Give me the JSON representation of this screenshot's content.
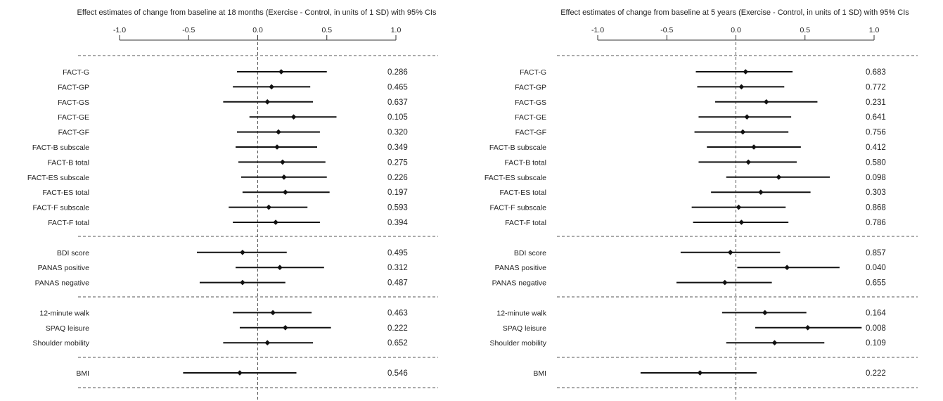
{
  "chart_data": [
    {
      "type": "forest",
      "title": "Effect estimates of change from baseline at 18 months (Exercise - Control, in units of 1 SD) with 95% CIs",
      "xlim": [
        -1.0,
        1.0
      ],
      "ticks": [
        "-1.0",
        "-0.5",
        "0.0",
        "0.5",
        "1.0"
      ],
      "reference_line": 0.0,
      "groups": [
        {
          "rows": [
            {
              "label": "FACT-G",
              "est": 0.17,
              "lo": -0.15,
              "hi": 0.5,
              "p": "0.286"
            },
            {
              "label": "FACT-GP",
              "est": 0.1,
              "lo": -0.18,
              "hi": 0.38,
              "p": "0.465"
            },
            {
              "label": "FACT-GS",
              "est": 0.07,
              "lo": -0.25,
              "hi": 0.4,
              "p": "0.637"
            },
            {
              "label": "FACT-GE",
              "est": 0.26,
              "lo": -0.06,
              "hi": 0.57,
              "p": "0.105"
            },
            {
              "label": "FACT-GF",
              "est": 0.15,
              "lo": -0.15,
              "hi": 0.45,
              "p": "0.320"
            },
            {
              "label": "FACT-B subscale",
              "est": 0.14,
              "lo": -0.16,
              "hi": 0.43,
              "p": "0.349"
            },
            {
              "label": "FACT-B total",
              "est": 0.18,
              "lo": -0.14,
              "hi": 0.49,
              "p": "0.275"
            },
            {
              "label": "FACT-ES subscale",
              "est": 0.19,
              "lo": -0.12,
              "hi": 0.5,
              "p": "0.226"
            },
            {
              "label": "FACT-ES total",
              "est": 0.2,
              "lo": -0.11,
              "hi": 0.52,
              "p": "0.197"
            },
            {
              "label": "FACT-F subscale",
              "est": 0.08,
              "lo": -0.21,
              "hi": 0.36,
              "p": "0.593"
            },
            {
              "label": "FACT-F total",
              "est": 0.13,
              "lo": -0.18,
              "hi": 0.45,
              "p": "0.394"
            }
          ]
        },
        {
          "rows": [
            {
              "label": "BDI score",
              "est": -0.11,
              "lo": -0.44,
              "hi": 0.21,
              "p": "0.495"
            },
            {
              "label": "PANAS positive",
              "est": 0.16,
              "lo": -0.16,
              "hi": 0.48,
              "p": "0.312"
            },
            {
              "label": "PANAS negative",
              "est": -0.11,
              "lo": -0.42,
              "hi": 0.2,
              "p": "0.487"
            }
          ]
        },
        {
          "rows": [
            {
              "label": "12-minute walk",
              "est": 0.11,
              "lo": -0.18,
              "hi": 0.39,
              "p": "0.463"
            },
            {
              "label": "SPAQ leisure",
              "est": 0.2,
              "lo": -0.13,
              "hi": 0.53,
              "p": "0.222"
            },
            {
              "label": "Shoulder mobility",
              "est": 0.07,
              "lo": -0.25,
              "hi": 0.4,
              "p": "0.652"
            }
          ]
        },
        {
          "rows": [
            {
              "label": "BMI",
              "est": -0.13,
              "lo": -0.54,
              "hi": 0.28,
              "p": "0.546"
            }
          ]
        }
      ]
    },
    {
      "type": "forest",
      "title": "Effect estimates of change from baseline at 5 years (Exercise - Control, in units of 1 SD) with 95% CIs",
      "xlim": [
        -1.0,
        1.0
      ],
      "ticks": [
        "-1.0",
        "-0.5",
        "0.0",
        "0.5",
        "1.0"
      ],
      "reference_line": 0.0,
      "groups": [
        {
          "rows": [
            {
              "label": "FACT-G",
              "est": 0.07,
              "lo": -0.29,
              "hi": 0.41,
              "p": "0.683"
            },
            {
              "label": "FACT-GP",
              "est": 0.04,
              "lo": -0.28,
              "hi": 0.35,
              "p": "0.772"
            },
            {
              "label": "FACT-GS",
              "est": 0.22,
              "lo": -0.15,
              "hi": 0.59,
              "p": "0.231"
            },
            {
              "label": "FACT-GE",
              "est": 0.08,
              "lo": -0.27,
              "hi": 0.4,
              "p": "0.641"
            },
            {
              "label": "FACT-GF",
              "est": 0.05,
              "lo": -0.3,
              "hi": 0.38,
              "p": "0.756"
            },
            {
              "label": "FACT-B subscale",
              "est": 0.13,
              "lo": -0.21,
              "hi": 0.47,
              "p": "0.412"
            },
            {
              "label": "FACT-B total",
              "est": 0.09,
              "lo": -0.27,
              "hi": 0.44,
              "p": "0.580"
            },
            {
              "label": "FACT-ES subscale",
              "est": 0.31,
              "lo": -0.07,
              "hi": 0.68,
              "p": "0.098"
            },
            {
              "label": "FACT-ES total",
              "est": 0.18,
              "lo": -0.18,
              "hi": 0.54,
              "p": "0.303"
            },
            {
              "label": "FACT-F subscale",
              "est": 0.02,
              "lo": -0.32,
              "hi": 0.36,
              "p": "0.868"
            },
            {
              "label": "FACT-F total",
              "est": 0.04,
              "lo": -0.31,
              "hi": 0.38,
              "p": "0.786"
            }
          ]
        },
        {
          "rows": [
            {
              "label": "BDI score",
              "est": -0.04,
              "lo": -0.4,
              "hi": 0.32,
              "p": "0.857"
            },
            {
              "label": "PANAS positive",
              "est": 0.37,
              "lo": 0.01,
              "hi": 0.75,
              "p": "0.040"
            },
            {
              "label": "PANAS negative",
              "est": -0.08,
              "lo": -0.43,
              "hi": 0.26,
              "p": "0.655"
            }
          ]
        },
        {
          "rows": [
            {
              "label": "12-minute walk",
              "est": 0.21,
              "lo": -0.1,
              "hi": 0.51,
              "p": "0.164"
            },
            {
              "label": "SPAQ leisure",
              "est": 0.52,
              "lo": 0.14,
              "hi": 0.91,
              "p": "0.008"
            },
            {
              "label": "Shoulder mobility",
              "est": 0.28,
              "lo": -0.07,
              "hi": 0.64,
              "p": "0.109"
            }
          ]
        },
        {
          "rows": [
            {
              "label": "BMI",
              "est": -0.26,
              "lo": -0.69,
              "hi": 0.15,
              "p": "0.222"
            }
          ]
        }
      ]
    }
  ]
}
